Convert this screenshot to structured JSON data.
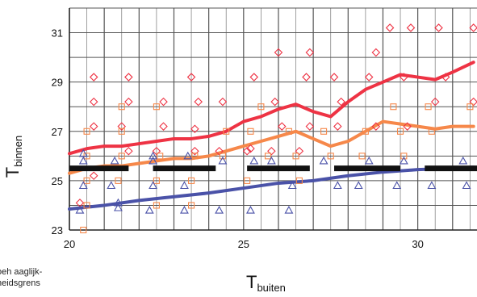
{
  "chart_data": {
    "type": "scatter",
    "title": "",
    "ylabel": {
      "main": "T",
      "sub": "binnen"
    },
    "xlabel": {
      "main": "T",
      "sub": "buiten"
    },
    "xlim": [
      20,
      31.7
    ],
    "ylim": [
      23,
      32
    ],
    "x_ticks": [
      20,
      25,
      30
    ],
    "y_ticks": [
      23,
      25,
      27,
      29,
      31
    ],
    "grid": true,
    "legend_note": [
      "oeh aaglijk-",
      "heidsgrens"
    ],
    "colors": {
      "red": "#ee3344",
      "orange": "#f6884a",
      "blue": "#4a52a8",
      "black": "#111111"
    },
    "series": [
      {
        "marker": "line",
        "color": "red",
        "x": [
          20,
          20.5,
          21,
          21.5,
          22,
          22.5,
          23,
          23.5,
          24,
          24.5,
          25,
          25.5,
          26,
          26.5,
          27,
          27.5,
          28,
          28.5,
          29,
          29.5,
          30,
          30.5,
          31,
          31.6
        ],
        "y": [
          26.1,
          26.3,
          26.4,
          26.4,
          26.5,
          26.6,
          26.7,
          26.7,
          26.8,
          27.0,
          27.4,
          27.6,
          27.9,
          28.1,
          27.8,
          27.6,
          28.2,
          28.7,
          29.0,
          29.3,
          29.2,
          29.1,
          29.4,
          29.8
        ]
      },
      {
        "marker": "line",
        "color": "orange",
        "x": [
          20,
          20.5,
          21,
          21.5,
          22,
          22.5,
          23,
          23.5,
          24,
          24.5,
          25,
          25.5,
          26,
          26.5,
          27,
          27.5,
          28,
          28.5,
          29,
          29.5,
          30,
          30.5,
          31,
          31.6
        ],
        "y": [
          25.3,
          25.5,
          25.6,
          25.6,
          25.7,
          25.8,
          25.9,
          25.9,
          26.0,
          26.2,
          26.4,
          26.6,
          26.8,
          27.0,
          26.7,
          26.4,
          26.6,
          27.0,
          27.4,
          27.3,
          27.2,
          27.1,
          27.2,
          27.2
        ]
      },
      {
        "marker": "line",
        "color": "blue",
        "x": [
          20,
          21,
          22,
          23,
          24,
          25,
          26,
          27,
          28,
          29,
          30,
          31,
          31.6
        ],
        "y": [
          23.85,
          24.0,
          24.2,
          24.35,
          24.5,
          24.7,
          24.9,
          25.0,
          25.2,
          25.35,
          25.45,
          25.5,
          25.55
        ]
      },
      {
        "marker": "segments",
        "color": "black",
        "segments": [
          [
            20,
            21.7
          ],
          [
            22.4,
            24.2
          ],
          [
            25.1,
            26.9
          ],
          [
            27.6,
            29.5
          ],
          [
            30.2,
            31.7
          ]
        ],
        "y": 25.5
      },
      {
        "marker": "diamond",
        "color": "red",
        "x": [
          20.3,
          20.7,
          20.7,
          20.7,
          20.7,
          21.5,
          21.7,
          21.7,
          21.7,
          22.5,
          22.7,
          22.7,
          23.6,
          23.6,
          23.5,
          23.7,
          24.3,
          24.4,
          25.1,
          25.3,
          25.2,
          25.8,
          25.9,
          26.0,
          26.1,
          26.8,
          26.9,
          26.9,
          26.6,
          27.6,
          27.8,
          27.7,
          28.6,
          28.8,
          28.8,
          29.2,
          29.6,
          29.7,
          29.8,
          30.5,
          30.6,
          30.8,
          31.6,
          31.6
        ],
        "y": [
          24.1,
          27.2,
          28.2,
          29.2,
          25.2,
          27.2,
          28.2,
          29.2,
          26.2,
          26.2,
          27.2,
          28.2,
          26.2,
          27.1,
          29.2,
          28.2,
          26.2,
          28.2,
          26.2,
          29.2,
          26.3,
          26.2,
          28.2,
          30.2,
          27.2,
          29.2,
          30.2,
          27.2,
          26.2,
          29.2,
          28.2,
          27.2,
          29.2,
          27.2,
          30.2,
          31.2,
          29.2,
          27.2,
          31.2,
          28.2,
          31.2,
          29.2,
          31.2,
          28.2
        ]
      },
      {
        "marker": "square",
        "color": "orange",
        "x": [
          20.4,
          20.5,
          20.5,
          20.5,
          20.5,
          21.4,
          21.5,
          21.5,
          21.5,
          22.5,
          22.6,
          22.5,
          22.5,
          23.5,
          23.5,
          23.6,
          24.4,
          24.5,
          25.1,
          25.2,
          25.5,
          25.7,
          26.3,
          26.5,
          26.6,
          27.3,
          27.5,
          28.4,
          28.5,
          29.3,
          29.5,
          29.6,
          30.3,
          30.4,
          31.5
        ],
        "y": [
          23.0,
          26.0,
          27.0,
          25.0,
          24.0,
          25.0,
          26.0,
          27.0,
          28.0,
          24.0,
          26.0,
          25.0,
          28.0,
          25.0,
          24.0,
          26.0,
          26.0,
          27.0,
          25.0,
          27.0,
          28.0,
          26.0,
          27.0,
          26.0,
          25.0,
          27.0,
          26.0,
          26.0,
          27.0,
          28.0,
          27.0,
          26.0,
          28.0,
          27.0,
          28.0
        ]
      },
      {
        "marker": "triangle",
        "color": "blue",
        "x": [
          20.3,
          20.4,
          20.4,
          20.4,
          21.2,
          21.3,
          21.4,
          21.4,
          22.3,
          22.4,
          22.4,
          22.4,
          23.3,
          23.3,
          23.4,
          24.3,
          24.4,
          25.2,
          25.3,
          25.8,
          26.3,
          26.4,
          27.3,
          27.7,
          28.3,
          28.6,
          29.4,
          29.6,
          30.4,
          31.3,
          31.4
        ],
        "y": [
          23.8,
          24.8,
          25.8,
          26.1,
          24.8,
          25.8,
          24.1,
          23.9,
          23.8,
          24.8,
          25.8,
          26.0,
          24.8,
          23.8,
          26.0,
          23.8,
          25.8,
          23.8,
          25.8,
          25.8,
          23.8,
          24.8,
          25.8,
          24.8,
          24.8,
          25.8,
          24.8,
          25.8,
          24.8,
          25.8,
          24.8
        ]
      }
    ]
  }
}
